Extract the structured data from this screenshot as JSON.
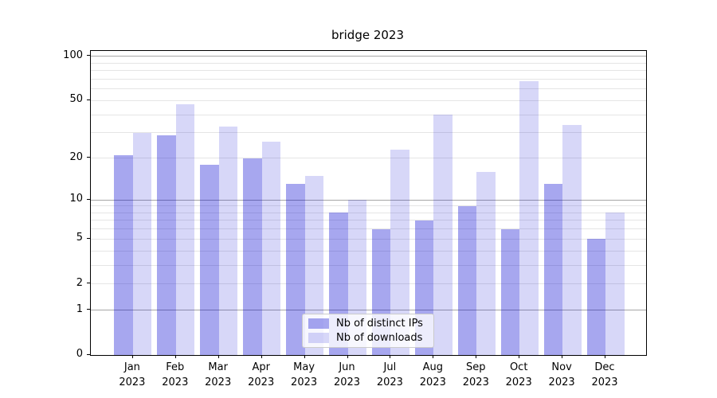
{
  "chart_data": {
    "type": "bar",
    "title": "bridge 2023",
    "categories": [
      "Jan 2023",
      "Feb 2023",
      "Mar 2023",
      "Apr 2023",
      "May 2023",
      "Jun 2023",
      "Jul 2023",
      "Aug 2023",
      "Sep 2023",
      "Oct 2023",
      "Nov 2023",
      "Dec 2023"
    ],
    "series": [
      {
        "name": "Nb of distinct IPs",
        "color": "rgba(0,0,210,0.345)",
        "values": [
          21,
          29,
          18,
          20,
          13,
          8,
          6,
          7,
          9,
          6,
          13,
          5
        ]
      },
      {
        "name": "Nb of downloads",
        "color": "rgba(0,0,210,0.155)",
        "values": [
          30,
          47,
          33,
          26,
          15,
          10,
          23,
          40,
          16,
          68,
          34,
          8
        ]
      }
    ],
    "xlabel": "",
    "ylabel": "",
    "yscale": "log1p",
    "ylim": [
      0,
      109
    ],
    "y_tick_values": [
      0,
      1,
      2,
      5,
      10,
      20,
      50,
      100
    ],
    "y_tick_labels": [
      "0",
      "1",
      "2",
      "5",
      "10",
      "20",
      "50",
      "100"
    ],
    "gridlines_major": [
      1,
      10,
      100
    ],
    "gridlines_minor": [
      2,
      3,
      4,
      5,
      6,
      7,
      8,
      9,
      20,
      30,
      40,
      50,
      60,
      70,
      80,
      90
    ],
    "grid": "on",
    "legend_position": "lower center"
  },
  "legend": {
    "items": [
      "Nb of distinct IPs",
      "Nb of downloads"
    ]
  },
  "colors": {
    "bar_distinct_ips": "rgba(0,0,210,0.345)",
    "bar_downloads": "rgba(0,0,210,0.155)",
    "grid_major": "#a6a6a6",
    "grid_minor": "#e5e5e5",
    "spine": "#000000"
  }
}
